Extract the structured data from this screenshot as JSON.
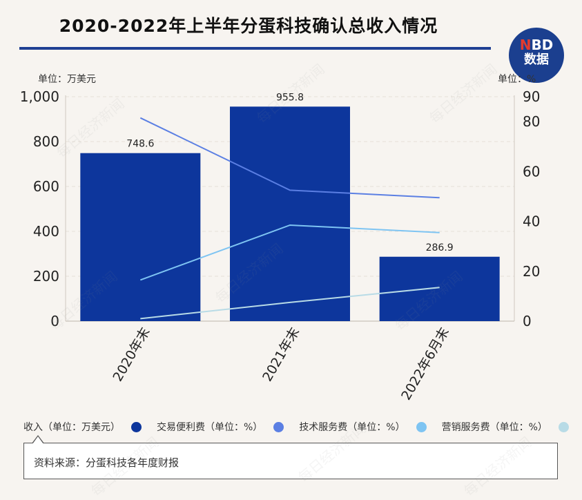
{
  "title": "2020-2022年上半年分蛋科技确认总收入情况",
  "logo": {
    "n": "N",
    "bd": "BD",
    "line2": "数据"
  },
  "watermark": "每日经济新闻",
  "chart_data": {
    "type": "bar",
    "categories": [
      "2020年末",
      "2021年末",
      "2022年6月末"
    ],
    "series": [
      {
        "name": "收入（单位：万美元）",
        "kind": "bar",
        "axis": "left",
        "values": [
          748.6,
          955.8,
          286.9
        ],
        "color": "#0d369c"
      },
      {
        "name": "交易便利费（单位：%）",
        "kind": "line",
        "axis": "right",
        "values": [
          81.5,
          52.5,
          49.5
        ],
        "color": "#5b7fe3"
      },
      {
        "name": "技术服务费（单位：%）",
        "kind": "line",
        "axis": "right",
        "values": [
          16.5,
          38.5,
          35.5
        ],
        "color": "#7ec4f2"
      },
      {
        "name": "营销服务费（单位：%）",
        "kind": "line",
        "axis": "right",
        "values": [
          1.0,
          7.5,
          13.5
        ],
        "color": "#b8dbe6"
      }
    ],
    "data_labels": [
      "748.6",
      "955.8",
      "286.9"
    ],
    "left_axis": {
      "unit": "单位：万美元",
      "ylim": [
        0,
        1000
      ],
      "ticks": [
        "0",
        "200",
        "400",
        "600",
        "800",
        "1,000"
      ]
    },
    "right_axis": {
      "unit": "单位：%",
      "ylim": [
        0,
        90
      ],
      "ticks": [
        "0",
        "20",
        "40",
        "60",
        "80",
        "90"
      ]
    },
    "grid": true,
    "legend_position": "bottom"
  },
  "legend": [
    {
      "label": "收入（单位：万美元）",
      "color": "#0d369c"
    },
    {
      "label": "交易便利费（单位：%）",
      "color": "#5b7fe3"
    },
    {
      "label": "技术服务费（单位：%）",
      "color": "#7ec4f2"
    },
    {
      "label": "营销服务费（单位：%）",
      "color": "#b8dbe6"
    }
  ],
  "source": "资料来源：分蛋科技各年度财报"
}
